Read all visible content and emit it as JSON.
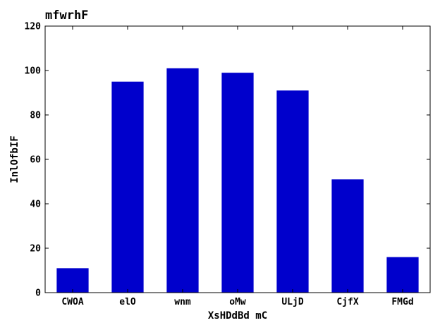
{
  "chart_data": {
    "type": "bar",
    "title": "mfwrhF",
    "xlabel": "XsHDdBd mC",
    "ylabel": "InlOfbIF",
    "categories": [
      "CWOA",
      "elO",
      "wnm",
      "oMw",
      "ULjD",
      "CjfX",
      "FMGd"
    ],
    "values": [
      11,
      95,
      101,
      99,
      91,
      51,
      16
    ],
    "ylim": [
      0,
      120
    ],
    "yticks": [
      "0",
      "20",
      "40",
      "60",
      "80",
      "100",
      "120"
    ],
    "bar_color": "#0000cc",
    "grid": false,
    "legend": "none"
  }
}
